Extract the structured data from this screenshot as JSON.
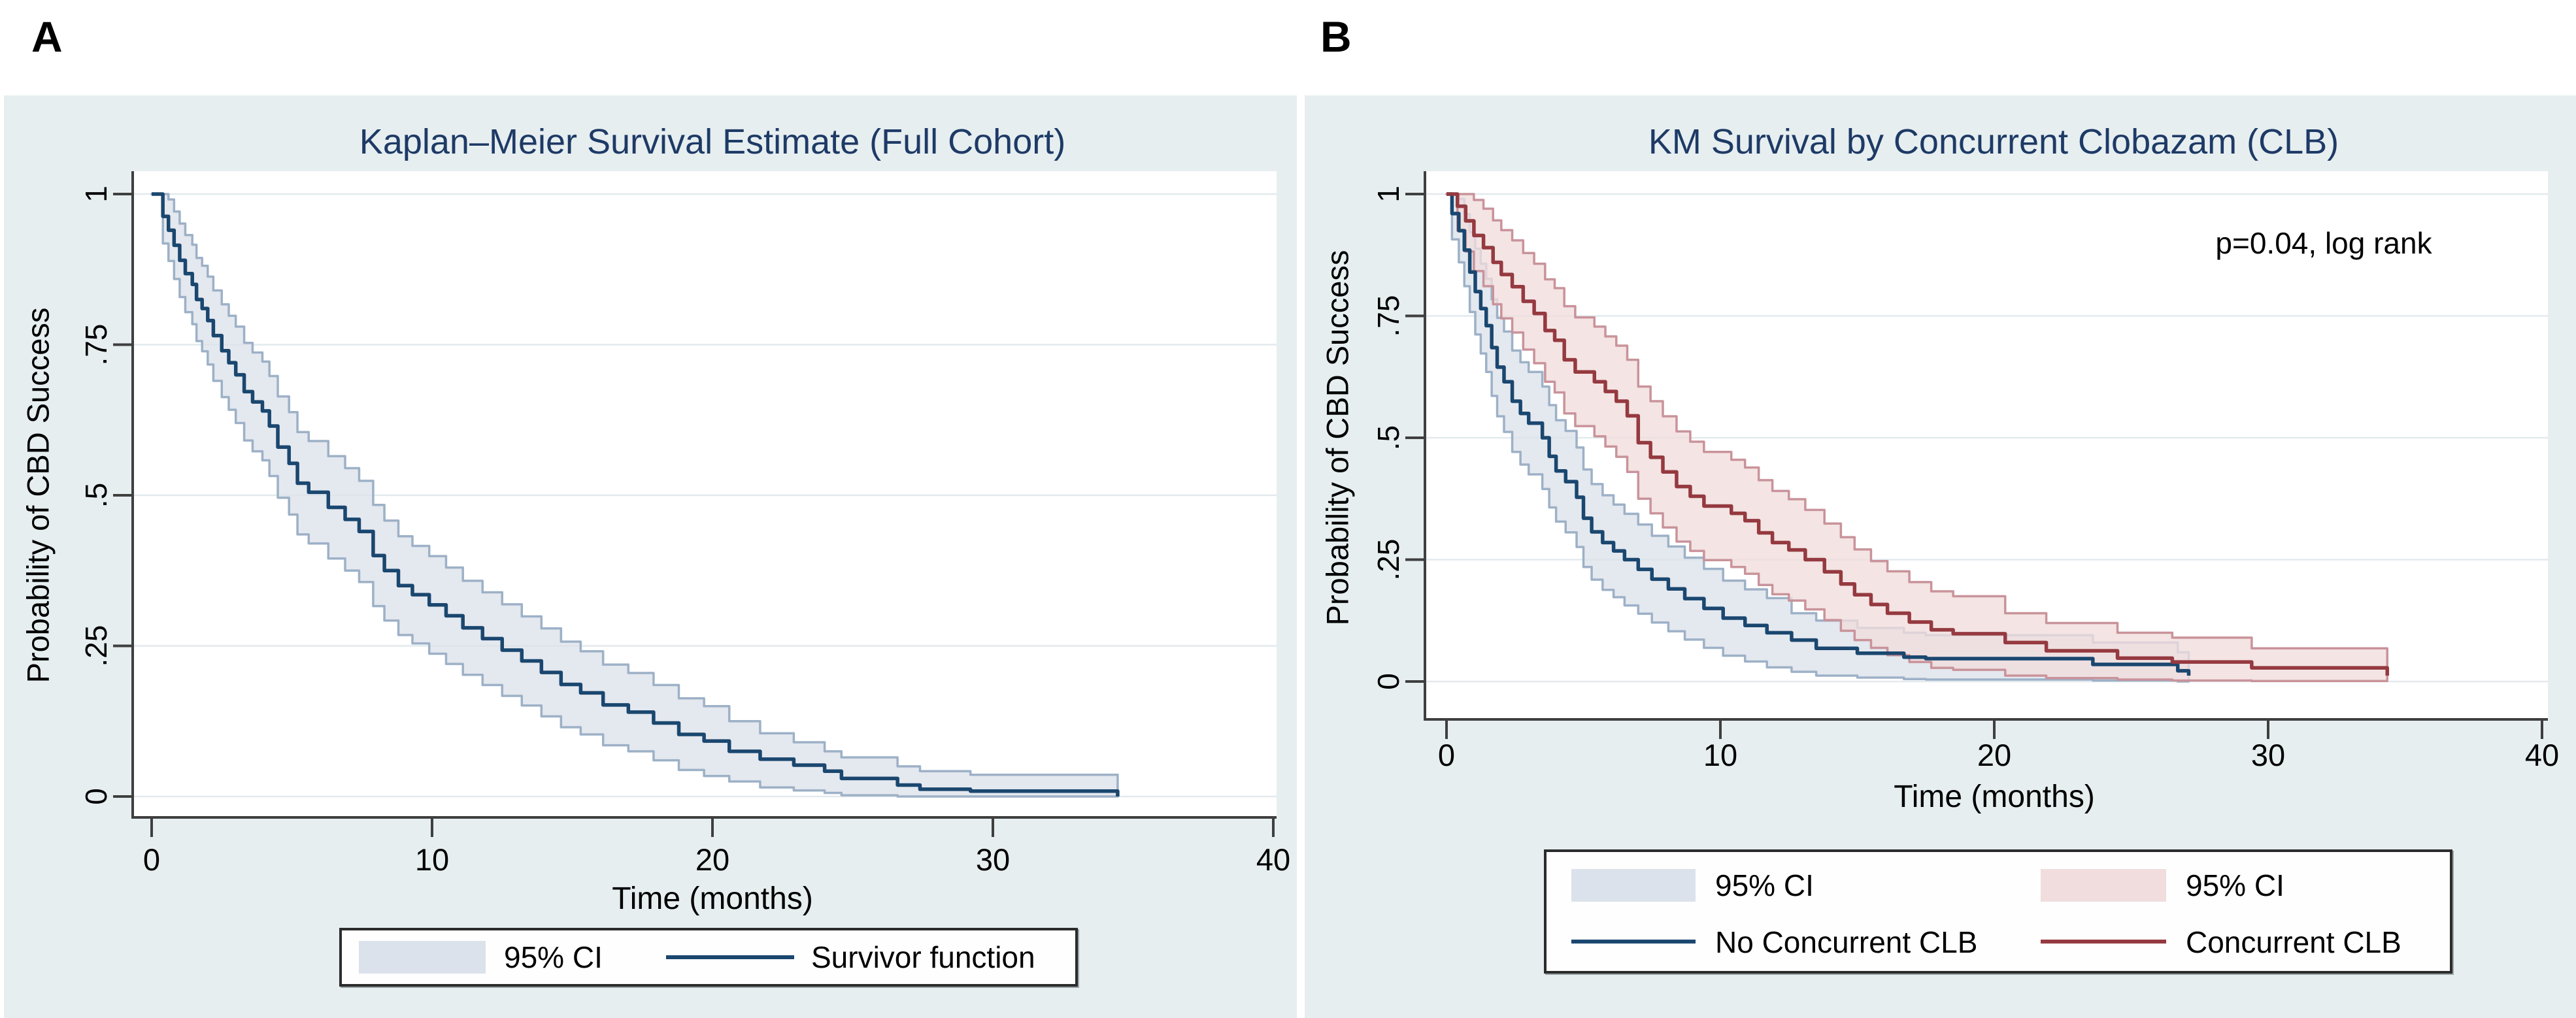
{
  "figure": {
    "panel_a_label": "A",
    "panel_b_label": "B"
  },
  "colors": {
    "page_background": "#ffffff",
    "panel_background": "#e6eef0",
    "plot_background": "#ffffff",
    "gridline": "#e2eaee",
    "axis": "#3f3f3f",
    "tick_text": "#000000",
    "title_text": "#1e3a66",
    "navy_line": "#1a476f",
    "navy_band_fill": "#dce2eb",
    "navy_band_edge": "#9db1c7",
    "maroon_line": "#953a40",
    "maroon_band_fill": "#f1dddd",
    "maroon_band_edge": "#c9939a"
  },
  "chart_data": [
    {
      "type": "line",
      "subtype": "kaplan_meier_step",
      "panel_label": "A",
      "title": "Kaplan–Meier Survival Estimate (Full Cohort)",
      "xlabel": "Time (months)",
      "ylabel": "Probability of CBD Success",
      "xlim": [
        0,
        40
      ],
      "ylim": [
        0,
        1
      ],
      "xticks": [
        0,
        10,
        20,
        30,
        40
      ],
      "ytick_values": [
        0,
        0.25,
        0.5,
        0.75,
        1
      ],
      "ytick_labels": [
        "0",
        ".25",
        ".5",
        ".75",
        "1"
      ],
      "grid": "horizontal",
      "legend_position": "bottom",
      "legend": [
        {
          "label": "95% CI",
          "swatch": "band",
          "color": "#dce2eb"
        },
        {
          "label": "Survivor function",
          "swatch": "line",
          "color": "#1a476f"
        }
      ],
      "series": [
        {
          "name": "Survivor function",
          "line_color": "#1a476f",
          "band_fill": "#dce2eb",
          "band_edge": "#9db1c7",
          "points_tpul": [
            [
              0,
              1,
              1,
              1
            ],
            [
              0.4,
              0.963,
              1,
              0.918
            ],
            [
              0.6,
              0.94,
              0.991,
              0.889
            ],
            [
              0.8,
              0.915,
              0.971,
              0.859
            ],
            [
              1.0,
              0.89,
              0.951,
              0.829
            ],
            [
              1.2,
              0.868,
              0.932,
              0.804
            ],
            [
              1.45,
              0.85,
              0.916,
              0.784
            ],
            [
              1.6,
              0.825,
              0.894,
              0.756
            ],
            [
              1.8,
              0.81,
              0.881,
              0.739
            ],
            [
              2.0,
              0.79,
              0.863,
              0.717
            ],
            [
              2.2,
              0.765,
              0.84,
              0.69
            ],
            [
              2.5,
              0.74,
              0.817,
              0.663
            ],
            [
              2.75,
              0.72,
              0.798,
              0.642
            ],
            [
              3.0,
              0.7,
              0.78,
              0.62
            ],
            [
              3.3,
              0.672,
              0.753,
              0.591
            ],
            [
              3.6,
              0.655,
              0.737,
              0.573
            ],
            [
              3.95,
              0.64,
              0.722,
              0.558
            ],
            [
              4.2,
              0.615,
              0.698,
              0.532
            ],
            [
              4.5,
              0.58,
              0.664,
              0.496
            ],
            [
              4.9,
              0.553,
              0.638,
              0.468
            ],
            [
              5.2,
              0.52,
              0.605,
              0.435
            ],
            [
              5.6,
              0.505,
              0.59,
              0.42
            ],
            [
              6.3,
              0.48,
              0.565,
              0.395
            ],
            [
              6.9,
              0.46,
              0.545,
              0.375
            ],
            [
              7.4,
              0.44,
              0.524,
              0.356
            ],
            [
              7.9,
              0.4,
              0.484,
              0.316
            ],
            [
              8.3,
              0.375,
              0.458,
              0.292
            ],
            [
              8.8,
              0.35,
              0.432,
              0.268
            ],
            [
              9.3,
              0.335,
              0.416,
              0.254
            ],
            [
              9.9,
              0.318,
              0.399,
              0.237
            ],
            [
              10.5,
              0.3,
              0.38,
              0.22
            ],
            [
              11.1,
              0.28,
              0.358,
              0.202
            ],
            [
              11.8,
              0.262,
              0.339,
              0.185
            ],
            [
              12.5,
              0.243,
              0.319,
              0.167
            ],
            [
              13.2,
              0.225,
              0.299,
              0.151
            ],
            [
              13.9,
              0.206,
              0.279,
              0.133
            ],
            [
              14.6,
              0.186,
              0.257,
              0.115
            ],
            [
              15.3,
              0.172,
              0.241,
              0.103
            ],
            [
              16.1,
              0.152,
              0.219,
              0.085
            ],
            [
              17.0,
              0.14,
              0.205,
              0.075
            ],
            [
              17.9,
              0.122,
              0.185,
              0.06
            ],
            [
              18.8,
              0.103,
              0.163,
              0.044
            ],
            [
              19.7,
              0.092,
              0.15,
              0.034
            ],
            [
              20.6,
              0.075,
              0.125,
              0.025
            ],
            [
              21.7,
              0.062,
              0.105,
              0.015
            ],
            [
              22.9,
              0.052,
              0.09,
              0.01
            ],
            [
              24.0,
              0.042,
              0.075,
              0.006
            ],
            [
              24.6,
              0.03,
              0.065,
              0.002
            ],
            [
              26.6,
              0.019,
              0.05,
              0
            ],
            [
              27.4,
              0.012,
              0.042,
              0
            ],
            [
              29.2,
              0.009,
              0.036,
              0
            ],
            [
              34.4,
              0.009,
              0.036,
              0
            ],
            [
              34.45,
              0,
              0.036,
              0
            ]
          ]
        }
      ]
    },
    {
      "type": "line",
      "subtype": "kaplan_meier_step",
      "panel_label": "B",
      "title": "KM Survival by Concurrent Clobazam (CLB)",
      "xlabel": "Time (months)",
      "ylabel": "Probability of CBD Success",
      "annotation": "p=0.04, log rank",
      "xlim": [
        0,
        40
      ],
      "ylim": [
        0,
        1
      ],
      "xticks": [
        0,
        10,
        20,
        30,
        40
      ],
      "ytick_values": [
        0,
        0.25,
        0.5,
        0.75,
        1
      ],
      "ytick_labels": [
        "0",
        ".25",
        ".5",
        ".75",
        "1"
      ],
      "grid": "horizontal",
      "legend_position": "bottom",
      "legend": [
        {
          "label": "95% CI",
          "swatch": "band",
          "color": "#dce2eb"
        },
        {
          "label": "95% CI",
          "swatch": "band",
          "color": "#f1dddd"
        },
        {
          "label": "No Concurrent CLB",
          "swatch": "line",
          "color": "#1a476f"
        },
        {
          "label": "Concurrent CLB",
          "swatch": "line",
          "color": "#953a40"
        }
      ],
      "series": [
        {
          "name": "No Concurrent CLB",
          "line_color": "#1a476f",
          "band_fill": "#dce2eb",
          "band_edge": "#9db1c7",
          "points_tpul": [
            [
              0,
              1,
              1,
              1
            ],
            [
              0.2,
              0.96,
              1,
              0.907
            ],
            [
              0.45,
              0.925,
              0.99,
              0.86
            ],
            [
              0.65,
              0.885,
              0.959,
              0.811
            ],
            [
              0.85,
              0.84,
              0.922,
              0.758
            ],
            [
              1.05,
              0.8,
              0.888,
              0.712
            ],
            [
              1.25,
              0.765,
              0.857,
              0.673
            ],
            [
              1.45,
              0.73,
              0.826,
              0.635
            ],
            [
              1.65,
              0.685,
              0.784,
              0.586
            ],
            [
              1.85,
              0.645,
              0.746,
              0.544
            ],
            [
              2.1,
              0.615,
              0.718,
              0.512
            ],
            [
              2.4,
              0.575,
              0.679,
              0.471
            ],
            [
              2.7,
              0.55,
              0.655,
              0.445
            ],
            [
              3.0,
              0.53,
              0.635,
              0.425
            ],
            [
              3.5,
              0.5,
              0.605,
              0.395
            ],
            [
              3.75,
              0.462,
              0.567,
              0.357
            ],
            [
              4.0,
              0.432,
              0.536,
              0.328
            ],
            [
              4.35,
              0.41,
              0.514,
              0.306
            ],
            [
              4.75,
              0.378,
              0.48,
              0.276
            ],
            [
              5.0,
              0.335,
              0.435,
              0.235
            ],
            [
              5.3,
              0.307,
              0.405,
              0.209
            ],
            [
              5.7,
              0.285,
              0.382,
              0.188
            ],
            [
              6.1,
              0.268,
              0.363,
              0.173
            ],
            [
              6.5,
              0.25,
              0.344,
              0.156
            ],
            [
              7.0,
              0.23,
              0.322,
              0.139
            ],
            [
              7.5,
              0.21,
              0.299,
              0.121
            ],
            [
              8.1,
              0.19,
              0.277,
              0.103
            ],
            [
              8.7,
              0.17,
              0.254,
              0.086
            ],
            [
              9.4,
              0.15,
              0.231,
              0.069
            ],
            [
              10.1,
              0.13,
              0.207,
              0.053
            ],
            [
              10.9,
              0.115,
              0.189,
              0.041
            ],
            [
              11.7,
              0.1,
              0.171,
              0.029
            ],
            [
              12.6,
              0.085,
              0.14,
              0.02
            ],
            [
              13.5,
              0.068,
              0.125,
              0.012
            ],
            [
              15.0,
              0.058,
              0.11,
              0.008
            ],
            [
              16.7,
              0.05,
              0.1,
              0.005
            ],
            [
              17.5,
              0.047,
              0.095,
              0.004
            ],
            [
              23.6,
              0.035,
              0.08,
              0.002
            ],
            [
              26.7,
              0.022,
              0.06,
              0
            ],
            [
              27.1,
              0.012,
              0.06,
              0
            ]
          ]
        },
        {
          "name": "Concurrent CLB",
          "line_color": "#953a40",
          "band_fill": "#f1dddd",
          "band_edge": "#c9939a",
          "points_tpul": [
            [
              0,
              1,
              1,
              1
            ],
            [
              0.4,
              0.975,
              1,
              0.925
            ],
            [
              0.7,
              0.945,
              1,
              0.882
            ],
            [
              1.0,
              0.915,
              0.988,
              0.842
            ],
            [
              1.35,
              0.89,
              0.97,
              0.811
            ],
            [
              1.7,
              0.86,
              0.946,
              0.774
            ],
            [
              2.0,
              0.835,
              0.926,
              0.745
            ],
            [
              2.4,
              0.81,
              0.905,
              0.716
            ],
            [
              2.8,
              0.78,
              0.879,
              0.681
            ],
            [
              3.2,
              0.755,
              0.857,
              0.653
            ],
            [
              3.6,
              0.72,
              0.825,
              0.615
            ],
            [
              3.95,
              0.7,
              0.807,
              0.593
            ],
            [
              4.3,
              0.66,
              0.77,
              0.55
            ],
            [
              4.7,
              0.635,
              0.747,
              0.524
            ],
            [
              5.4,
              0.615,
              0.728,
              0.503
            ],
            [
              5.8,
              0.595,
              0.708,
              0.482
            ],
            [
              6.2,
              0.575,
              0.689,
              0.461
            ],
            [
              6.6,
              0.545,
              0.66,
              0.43
            ],
            [
              7.0,
              0.49,
              0.605,
              0.375
            ],
            [
              7.45,
              0.46,
              0.575,
              0.345
            ],
            [
              7.9,
              0.43,
              0.544,
              0.316
            ],
            [
              8.4,
              0.4,
              0.513,
              0.287
            ],
            [
              8.9,
              0.38,
              0.492,
              0.268
            ],
            [
              9.4,
              0.36,
              0.471,
              0.249
            ],
            [
              10.4,
              0.345,
              0.455,
              0.235
            ],
            [
              10.9,
              0.33,
              0.439,
              0.221
            ],
            [
              11.4,
              0.305,
              0.413,
              0.198
            ],
            [
              11.9,
              0.285,
              0.391,
              0.179
            ],
            [
              12.5,
              0.27,
              0.374,
              0.166
            ],
            [
              13.1,
              0.25,
              0.352,
              0.148
            ],
            [
              13.8,
              0.225,
              0.324,
              0.126
            ],
            [
              14.4,
              0.2,
              0.296,
              0.104
            ],
            [
              14.9,
              0.178,
              0.271,
              0.085
            ],
            [
              15.5,
              0.158,
              0.247,
              0.069
            ],
            [
              16.1,
              0.14,
              0.226,
              0.054
            ],
            [
              16.9,
              0.122,
              0.204,
              0.04
            ],
            [
              17.7,
              0.106,
              0.185,
              0.028
            ],
            [
              18.5,
              0.098,
              0.175,
              0.024
            ],
            [
              20.4,
              0.08,
              0.14,
              0.012
            ],
            [
              21.9,
              0.063,
              0.12,
              0.007
            ],
            [
              24.5,
              0.048,
              0.1,
              0.004
            ],
            [
              26.5,
              0.04,
              0.09,
              0.002
            ],
            [
              29.4,
              0.028,
              0.068,
              0.001
            ],
            [
              34.3,
              0.028,
              0.068,
              0.001
            ],
            [
              34.35,
              0.012,
              0.068,
              0.001
            ]
          ]
        }
      ]
    }
  ]
}
